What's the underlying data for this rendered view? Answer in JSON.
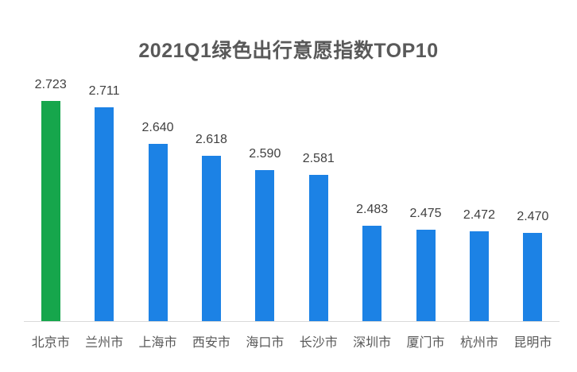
{
  "chart_data": {
    "type": "bar",
    "title": "2021Q1绿色出行意愿指数TOP10",
    "categories": [
      "北京市",
      "兰州市",
      "上海市",
      "西安市",
      "海口市",
      "长沙市",
      "深圳市",
      "厦门市",
      "杭州市",
      "昆明市"
    ],
    "values": [
      2.723,
      2.711,
      2.64,
      2.618,
      2.59,
      2.581,
      2.483,
      2.475,
      2.472,
      2.47
    ],
    "value_labels": [
      "2.723",
      "2.711",
      "2.640",
      "2.618",
      "2.590",
      "2.581",
      "2.483",
      "2.475",
      "2.472",
      "2.470"
    ],
    "highlight_index": 0,
    "ylim": [
      2.3,
      2.79
    ],
    "xlabel": "",
    "ylabel": "",
    "grid": false,
    "legend": "none",
    "colors": {
      "highlight_bar": "#16A64C",
      "default_bar": "#1C82E5",
      "title_text": "#595959",
      "value_label_text": "#404040",
      "category_label_text": "#595959",
      "axis_line": "#D9D9D9",
      "background": "#FFFFFF"
    }
  }
}
